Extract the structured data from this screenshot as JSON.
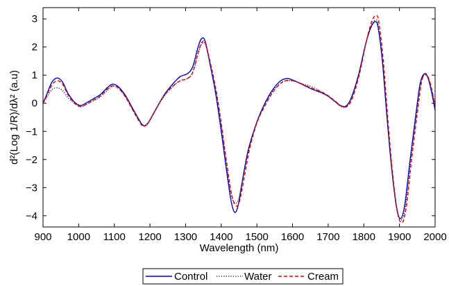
{
  "chart_data": {
    "type": "line",
    "xlabel": "Wavelength (nm)",
    "ylabel": "d²(Log 1/R)/dλ² (a.u)",
    "xlim": [
      900,
      2000
    ],
    "ylim": [
      -4.4,
      3.4
    ],
    "x_ticks": [
      900,
      1000,
      1100,
      1200,
      1300,
      1400,
      1500,
      1600,
      1700,
      1800,
      1900,
      2000
    ],
    "y_ticks": [
      -4,
      -3,
      -2,
      -1,
      0,
      1,
      2,
      3
    ],
    "grid": false,
    "legend_position": "bottom-center",
    "series": [
      {
        "name": "Control",
        "color": "#0000cc",
        "style": "solid",
        "points": [
          [
            900,
            0.0
          ],
          [
            910,
            0.3
          ],
          [
            925,
            0.75
          ],
          [
            940,
            0.9
          ],
          [
            955,
            0.75
          ],
          [
            970,
            0.35
          ],
          [
            990,
            0.02
          ],
          [
            1005,
            -0.08
          ],
          [
            1020,
            0.0
          ],
          [
            1040,
            0.15
          ],
          [
            1060,
            0.3
          ],
          [
            1080,
            0.55
          ],
          [
            1095,
            0.68
          ],
          [
            1110,
            0.6
          ],
          [
            1130,
            0.3
          ],
          [
            1150,
            -0.15
          ],
          [
            1170,
            -0.6
          ],
          [
            1182,
            -0.8
          ],
          [
            1195,
            -0.7
          ],
          [
            1215,
            -0.25
          ],
          [
            1240,
            0.3
          ],
          [
            1265,
            0.7
          ],
          [
            1285,
            0.95
          ],
          [
            1305,
            1.05
          ],
          [
            1320,
            1.3
          ],
          [
            1335,
            2.0
          ],
          [
            1345,
            2.3
          ],
          [
            1355,
            2.2
          ],
          [
            1370,
            1.3
          ],
          [
            1385,
            0.3
          ],
          [
            1400,
            -1.0
          ],
          [
            1415,
            -2.4
          ],
          [
            1428,
            -3.5
          ],
          [
            1438,
            -3.88
          ],
          [
            1448,
            -3.6
          ],
          [
            1460,
            -2.7
          ],
          [
            1475,
            -1.7
          ],
          [
            1495,
            -0.85
          ],
          [
            1515,
            -0.2
          ],
          [
            1540,
            0.4
          ],
          [
            1565,
            0.78
          ],
          [
            1585,
            0.88
          ],
          [
            1605,
            0.8
          ],
          [
            1630,
            0.65
          ],
          [
            1655,
            0.5
          ],
          [
            1680,
            0.38
          ],
          [
            1700,
            0.25
          ],
          [
            1720,
            0.05
          ],
          [
            1735,
            -0.08
          ],
          [
            1750,
            -0.1
          ],
          [
            1765,
            0.2
          ],
          [
            1785,
            1.0
          ],
          [
            1805,
            2.1
          ],
          [
            1820,
            2.7
          ],
          [
            1832,
            2.9
          ],
          [
            1840,
            2.7
          ],
          [
            1852,
            1.5
          ],
          [
            1865,
            -0.5
          ],
          [
            1878,
            -2.3
          ],
          [
            1892,
            -3.7
          ],
          [
            1903,
            -4.1
          ],
          [
            1915,
            -3.6
          ],
          [
            1930,
            -2.0
          ],
          [
            1945,
            -0.5
          ],
          [
            1958,
            0.7
          ],
          [
            1970,
            1.05
          ],
          [
            1980,
            0.9
          ],
          [
            1990,
            0.4
          ],
          [
            2000,
            -0.25
          ]
        ]
      },
      {
        "name": "Water",
        "color": "#222222",
        "style": "dotted",
        "points": [
          [
            900,
            0.0
          ],
          [
            910,
            0.2
          ],
          [
            925,
            0.48
          ],
          [
            940,
            0.55
          ],
          [
            955,
            0.45
          ],
          [
            970,
            0.2
          ],
          [
            990,
            -0.02
          ],
          [
            1005,
            -0.12
          ],
          [
            1020,
            -0.05
          ],
          [
            1040,
            0.08
          ],
          [
            1060,
            0.22
          ],
          [
            1080,
            0.45
          ],
          [
            1095,
            0.6
          ],
          [
            1110,
            0.55
          ],
          [
            1130,
            0.25
          ],
          [
            1150,
            -0.2
          ],
          [
            1170,
            -0.62
          ],
          [
            1182,
            -0.78
          ],
          [
            1195,
            -0.68
          ],
          [
            1215,
            -0.25
          ],
          [
            1240,
            0.25
          ],
          [
            1265,
            0.6
          ],
          [
            1285,
            0.8
          ],
          [
            1305,
            0.88
          ],
          [
            1320,
            1.1
          ],
          [
            1335,
            1.75
          ],
          [
            1345,
            2.1
          ],
          [
            1355,
            2.1
          ],
          [
            1370,
            1.35
          ],
          [
            1385,
            0.4
          ],
          [
            1400,
            -0.8
          ],
          [
            1415,
            -2.2
          ],
          [
            1428,
            -3.25
          ],
          [
            1440,
            -3.55
          ],
          [
            1450,
            -3.35
          ],
          [
            1462,
            -2.6
          ],
          [
            1478,
            -1.6
          ],
          [
            1498,
            -0.75
          ],
          [
            1518,
            -0.15
          ],
          [
            1542,
            0.38
          ],
          [
            1565,
            0.7
          ],
          [
            1585,
            0.8
          ],
          [
            1605,
            0.78
          ],
          [
            1630,
            0.68
          ],
          [
            1655,
            0.58
          ],
          [
            1680,
            0.42
          ],
          [
            1700,
            0.25
          ],
          [
            1720,
            0.05
          ],
          [
            1735,
            -0.12
          ],
          [
            1750,
            -0.12
          ],
          [
            1765,
            0.15
          ],
          [
            1785,
            0.95
          ],
          [
            1805,
            2.1
          ],
          [
            1820,
            2.75
          ],
          [
            1832,
            2.95
          ],
          [
            1840,
            2.8
          ],
          [
            1852,
            1.6
          ],
          [
            1865,
            -0.4
          ],
          [
            1878,
            -2.3
          ],
          [
            1892,
            -3.75
          ],
          [
            1905,
            -4.15
          ],
          [
            1917,
            -3.65
          ],
          [
            1932,
            -2.0
          ],
          [
            1947,
            -0.5
          ],
          [
            1960,
            0.75
          ],
          [
            1972,
            1.0
          ],
          [
            1982,
            0.85
          ],
          [
            1992,
            0.4
          ],
          [
            2000,
            -0.1
          ]
        ]
      },
      {
        "name": "Cream",
        "color": "#e00000",
        "style": "dashed",
        "points": [
          [
            900,
            0.0
          ],
          [
            910,
            0.25
          ],
          [
            925,
            0.65
          ],
          [
            940,
            0.8
          ],
          [
            955,
            0.68
          ],
          [
            970,
            0.3
          ],
          [
            990,
            -0.02
          ],
          [
            1005,
            -0.12
          ],
          [
            1020,
            -0.05
          ],
          [
            1040,
            0.1
          ],
          [
            1060,
            0.25
          ],
          [
            1080,
            0.5
          ],
          [
            1095,
            0.62
          ],
          [
            1110,
            0.55
          ],
          [
            1130,
            0.25
          ],
          [
            1150,
            -0.2
          ],
          [
            1170,
            -0.65
          ],
          [
            1182,
            -0.82
          ],
          [
            1195,
            -0.7
          ],
          [
            1215,
            -0.25
          ],
          [
            1240,
            0.28
          ],
          [
            1265,
            0.62
          ],
          [
            1285,
            0.8
          ],
          [
            1305,
            0.88
          ],
          [
            1320,
            1.1
          ],
          [
            1335,
            1.8
          ],
          [
            1345,
            2.15
          ],
          [
            1355,
            2.15
          ],
          [
            1370,
            1.4
          ],
          [
            1385,
            0.5
          ],
          [
            1400,
            -0.7
          ],
          [
            1415,
            -2.1
          ],
          [
            1430,
            -3.3
          ],
          [
            1442,
            -3.65
          ],
          [
            1452,
            -3.45
          ],
          [
            1465,
            -2.6
          ],
          [
            1480,
            -1.6
          ],
          [
            1500,
            -0.7
          ],
          [
            1520,
            -0.15
          ],
          [
            1545,
            0.4
          ],
          [
            1568,
            0.72
          ],
          [
            1588,
            0.82
          ],
          [
            1608,
            0.78
          ],
          [
            1632,
            0.65
          ],
          [
            1657,
            0.52
          ],
          [
            1682,
            0.4
          ],
          [
            1702,
            0.25
          ],
          [
            1722,
            0.05
          ],
          [
            1737,
            -0.1
          ],
          [
            1752,
            -0.12
          ],
          [
            1767,
            0.15
          ],
          [
            1787,
            1.0
          ],
          [
            1807,
            2.2
          ],
          [
            1822,
            2.9
          ],
          [
            1834,
            3.12
          ],
          [
            1842,
            2.9
          ],
          [
            1854,
            1.6
          ],
          [
            1867,
            -0.5
          ],
          [
            1880,
            -2.4
          ],
          [
            1894,
            -3.85
          ],
          [
            1907,
            -4.25
          ],
          [
            1919,
            -3.7
          ],
          [
            1934,
            -2.0
          ],
          [
            1949,
            -0.45
          ],
          [
            1962,
            0.75
          ],
          [
            1973,
            1.05
          ],
          [
            1983,
            0.85
          ],
          [
            1993,
            0.35
          ],
          [
            2000,
            -0.15
          ]
        ]
      }
    ]
  }
}
